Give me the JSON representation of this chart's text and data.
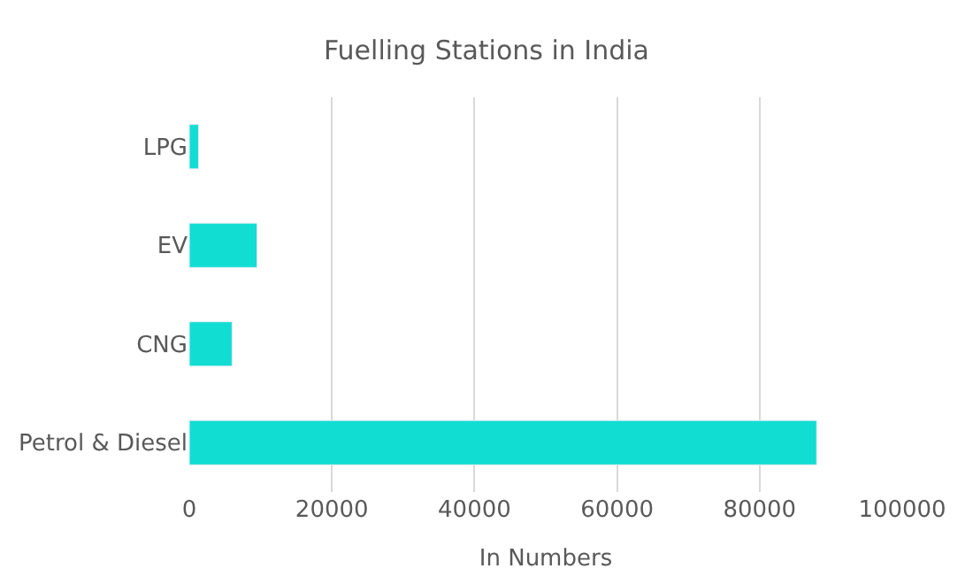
{
  "chart_data": {
    "type": "bar",
    "orientation": "horizontal",
    "title": "Fuelling Stations in India",
    "xlabel": "In Numbers",
    "categories": [
      "LPG",
      "EV",
      "CNG",
      "Petrol & Diesel"
    ],
    "values": [
      1300,
      9500,
      6000,
      88000
    ],
    "color": "#12ddd3",
    "xlim": [
      0,
      100000
    ],
    "xticks": [
      0,
      20000,
      40000,
      60000,
      80000,
      100000
    ],
    "grid": "x"
  }
}
